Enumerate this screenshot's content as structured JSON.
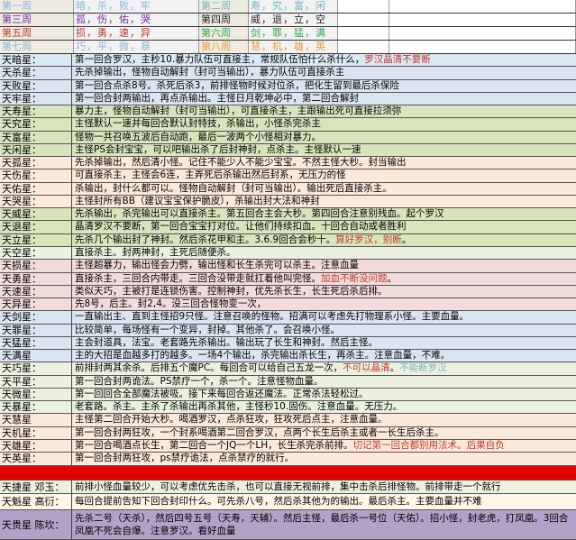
{
  "weeks": [
    {
      "a": "第一周",
      "as": "暗，杀，败，牢",
      "ac": "#8db3e2",
      "b": "第二周",
      "bs": "寿，究，富，闲",
      "bc": "#76b5c5"
    },
    {
      "a": "第三周",
      "as": "孤，伤，佑，哭",
      "ac": "#7030a0",
      "b": "第四周",
      "bs": "威，退，立，空",
      "bc": "#222222"
    },
    {
      "a": "第五周",
      "as": "损，勇，速，异",
      "ac": "#c0392b",
      "b": "第六周",
      "bs": "剑，罪，猛，满",
      "bc": "#3aa655"
    },
    {
      "a": "第七周",
      "as": "巧，平，微，暴",
      "ac": "#95b3d7",
      "b": "第八周",
      "bs": "慧，机，雄，英",
      "bc": "#e59a3c"
    }
  ],
  "rows": [
    {
      "label": "天暗星：",
      "bg": "#dbe9f5",
      "segs": [
        {
          "t": "第一回合罗汉，主秒10.暴力队伍可直接主，常规队伍怕什么杀什么，"
        },
        {
          "t": "罗汉晶清不要断",
          "c": "#c0392b"
        }
      ]
    },
    {
      "label": "天杀星：",
      "bg": "#dbe5f1",
      "segs": [
        {
          "t": "先杀掉输出，怪物自动解封（封可当输出），暴力队伍可直接杀主"
        }
      ]
    },
    {
      "label": "天败星：",
      "bg": "#dbe5f1",
      "segs": [
        {
          "t": "第一回合点杀8号。杀死后杀3，前排怪物时候对位杀，把化生留到最后杀保险"
        }
      ]
    },
    {
      "label": "天牢星：",
      "bg": "#dbe5f1",
      "segs": [
        {
          "t": "第一回合封两输出，再点杀输出。主怪日月乾坤必中，第二回合解封"
        }
      ]
    },
    {
      "label": "天寿星：",
      "bg": "#d7e4bc",
      "segs": [
        {
          "t": "暴力主，怪物自动解封（封可当输出），可直接杀主，主跟输出死可直接拉须弥"
        }
      ]
    },
    {
      "label": "天究星：",
      "bg": "#d7e4bc",
      "segs": [
        {
          "t": "主怪默认一速并每回合默认封特技，杀输出，小怪杀完杀主"
        }
      ]
    },
    {
      "label": "天富星：",
      "bg": "#d7e4bc",
      "segs": [
        {
          "t": "怪物一共召唤五波后自动跑，最后一波两个小怪相对暴力。"
        }
      ]
    },
    {
      "label": "天闲星：",
      "bg": "#d7e4bc",
      "segs": [
        {
          "t": "主怪PS会封宝宝，可以吧输出杀了后封神封，点杀主。主怪默认一速"
        }
      ]
    },
    {
      "label": "天孤星：",
      "bg": "#fde9d9",
      "segs": [
        {
          "t": "先杀掉输出，然后清小怪。记住不能少人不能少宝宝。不然主怪大秒。封当输出"
        }
      ]
    },
    {
      "label": "天伤星：",
      "bg": "#fde9d9",
      "segs": [
        {
          "t": "可直接杀主，主怪会6连，主弄死后杀输出然后封系，无压力的怪"
        }
      ]
    },
    {
      "label": "天佑星：",
      "bg": "#fde9d9",
      "segs": [
        {
          "t": "杀输出，封什么都可以。怪物自动解封（封可当输出）。输出死后直接杀主。"
        }
      ]
    },
    {
      "label": "天哭星：",
      "bg": "#fde9d9",
      "segs": [
        {
          "t": "主怪封所有BB（建议宝宝保护脆皮），杀输出封大法和神封"
        }
      ]
    },
    {
      "label": "天威星：",
      "bg": "#d7e4bc",
      "segs": [
        {
          "t": "先杀输出，杀完输出可以直接杀主。第五回合主会大秒。第四回合注意别残血。起个罗汉"
        }
      ]
    },
    {
      "label": "天退星：",
      "bg": "#d7e4bc",
      "segs": [
        {
          "t": "晶清罗汉不要断，第一回合宝宝打对位。让他们持续扣血。十回合自动或者胜利"
        }
      ]
    },
    {
      "label": "天立星：",
      "bg": "#d7e4bc",
      "segs": [
        {
          "t": "先杀几个输出封了神封。然后杀花甲和主。3.6.9回合会秒十。"
        },
        {
          "t": "算好罗汉，别断",
          "c": "#c0392b"
        },
        {
          "t": "。"
        }
      ]
    },
    {
      "label": "天空星：",
      "bg": "#ebf1de",
      "segs": [
        {
          "t": "直接杀主。封两神封，主死后随便杀。"
        }
      ]
    },
    {
      "label": "天损星：",
      "bg": "#f2dcdb",
      "segs": [
        {
          "t": "主怪超暴力，输出怪会力劈，输出怪和长生杀完可以杀主。注意血量"
        }
      ]
    },
    {
      "label": "天勇星：",
      "bg": "#f2dcdb",
      "segs": [
        {
          "t": "直接杀主，三回合内带走。三回合没带走就扛着他叫完怪。"
        },
        {
          "t": "加血不断没问题",
          "c": "#c0392b"
        },
        {
          "t": "。"
        }
      ]
    },
    {
      "label": "天速星：",
      "bg": "#f2dcdb",
      "segs": [
        {
          "t": "类似天巧，主被打是连锁伤害。控制神封，优先杀长生，长生死后杀后排。"
        }
      ]
    },
    {
      "label": "天异星：",
      "bg": "#f2dcdb",
      "segs": [
        {
          "t": "先8号，后主。封2,4。没三回合怪物变一次，"
        }
      ]
    },
    {
      "label": "天剑星：",
      "bg": "#dbe5f1",
      "segs": [
        {
          "t": "一直输出主、直到主怪招9只怪。注意召唤的怪物。招满可以考虑先打物理系小怪。主要血量。"
        }
      ]
    },
    {
      "label": "天罪星：",
      "bg": "#dbe5f1",
      "segs": [
        {
          "t": "比较简单，每场怪有一个变异，封掉。其他杀了。会召唤小怪。"
        }
      ]
    },
    {
      "label": "天猛星：",
      "bg": "#dbe5f1",
      "segs": [
        {
          "t": "主会封道具，法宝。老套路先杀输出。输出玩了长生和神封。然后主怪。"
        }
      ]
    },
    {
      "label": "天满星",
      "bg": "#dbe5f1",
      "segs": [
        {
          "t": "主的大招是血越多打的越多。一场4个输出，杀完输出杀长生，再杀主。注意血量，不难。"
        }
      ]
    },
    {
      "label": "天巧星：",
      "bg": "#ebf1de",
      "segs": [
        {
          "t": "前排封两其余杀。后排五个魔PC。每回合可以给自己五龙一次，"
        },
        {
          "t": "不可以晶清",
          "c": "#c0392b"
        },
        {
          "t": "。"
        },
        {
          "t": "不能断罗汉",
          "c": "#7fb2c9"
        }
      ]
    },
    {
      "label": "天平星：",
      "bg": "#ebf1de",
      "segs": [
        {
          "t": "第一回合封两诡法。PS禁疗一个，杀一个。注意怪物血量。"
        }
      ]
    },
    {
      "label": "天微星：",
      "bg": "#ebf1de",
      "segs": [
        {
          "t": "第一回回合全部魔法被吸。接下来每回合返还魔法。正常杀法轻松过。"
        }
      ]
    },
    {
      "label": "天暴星：",
      "bg": "#ebf1de",
      "segs": [
        {
          "t": "老套路。杀主。主杀了杀输出再杀其他，主怪秒10.固伤。注意血量。无压力。"
        }
      ]
    },
    {
      "label": "天慧星",
      "bg": "#fde9d9",
      "segs": [
        {
          "t": "主怪第二回合开始大秒。喝酒罗汉，点杀狂攻，狂攻死后点主，注意血量。"
        }
      ]
    },
    {
      "label": "天机星：",
      "bg": "#fde9d9",
      "segs": [
        {
          "t": "第一回合封两狂攻，一个封系喝酒第二回合罗汉，点两个长生后杀主或者一长生后杀主。"
        }
      ]
    },
    {
      "label": "天雄星：",
      "bg": "#fde9d9",
      "segs": [
        {
          "t": "第一回合喝酒点长生，第二回合一个JQ一个LH，长生杀完杀前排。"
        },
        {
          "t": "切记第一回合都别用法术。后果自负",
          "c": "#c0392b"
        }
      ]
    },
    {
      "label": "天英星：",
      "bg": "#fde9d9",
      "segs": [
        {
          "t": "第一回合封两狂攻，ps禁疗诡法，点杀禁疗的就行。"
        }
      ]
    }
  ],
  "bottom": [
    {
      "label": "天捷星 邓玉：",
      "bg": "#ebf1de",
      "text": "前排小怪血量较少，可以考虑优先击杀，也可以直接无视前排，集中击杀后排怪物。前排带走一个就行"
    },
    {
      "label": "天魁星 高衍：",
      "bg": "#fdf5e6",
      "text": "每回合提前告知下回合封印什么。可先杀八号，然后杀其他为的输出。最后杀主。主要血量并不难"
    },
    {
      "label": "天贵星 陈坎：",
      "bg": "#b3a2c7",
      "text": "先杀二号（天杀），然后四号五号（天寿，天辅）。然后主怪，最后杀一号位（天佑）。招小怪，封老虎，打凤凰。3回合凤凰不死会自爆。注意罗汉。看好血量"
    }
  ],
  "colors": {
    "separator": "#e60000"
  }
}
